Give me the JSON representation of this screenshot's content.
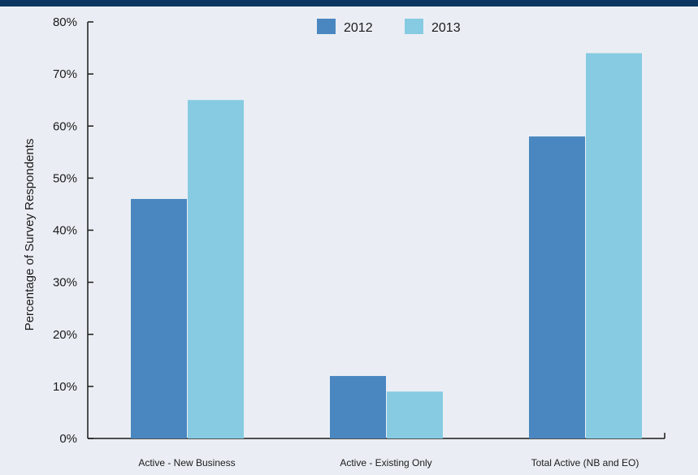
{
  "chart_data": {
    "type": "bar",
    "title": "",
    "xlabel": "",
    "ylabel": "Percentage of Survey Respondents",
    "categories": [
      "Active - New Business",
      "Active - Existing Only",
      "Total Active (NB and EO)"
    ],
    "series": [
      {
        "name": "2012",
        "values": [
          46,
          12,
          58
        ],
        "color": "#4a87c0"
      },
      {
        "name": "2013",
        "values": [
          65,
          9,
          74
        ],
        "color": "#86cbe2"
      }
    ],
    "ylim": [
      0,
      80
    ],
    "yticks": [
      0,
      10,
      20,
      30,
      40,
      50,
      60,
      70,
      80
    ],
    "ytick_labels": [
      "0%",
      "10%",
      "20%",
      "30%",
      "40%",
      "50%",
      "60%",
      "70%",
      "80%"
    ],
    "grid": false,
    "legend_position": "top-center"
  },
  "colors": {
    "background": "#eaeef4",
    "header_bar": "#0d3561",
    "axis": "#1a1a1a"
  }
}
